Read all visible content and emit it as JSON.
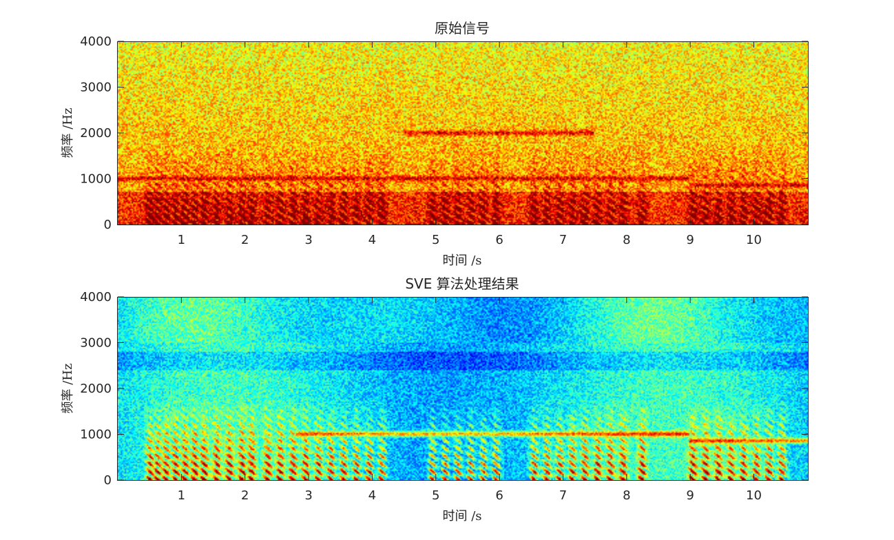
{
  "colors": {
    "text": "#262626",
    "background": "#ffffff",
    "colormap": "jet"
  },
  "chart_data": [
    {
      "type": "heatmap",
      "title": "原始信号",
      "xlabel": "时间 /s",
      "ylabel": "频率 /Hz",
      "xlim": [
        0,
        10.85
      ],
      "ylim": [
        0,
        4000
      ],
      "xticks": [
        1,
        2,
        3,
        4,
        5,
        6,
        7,
        8,
        9,
        10
      ],
      "xtick_labels": [
        "1",
        "2",
        "3",
        "4",
        "5",
        "6",
        "7",
        "8",
        "9",
        "10"
      ],
      "yticks": [
        0,
        1000,
        2000,
        3000,
        4000
      ],
      "ytick_labels": [
        "0",
        "1000",
        "2000",
        "3000",
        "4000"
      ],
      "colormap": "jet",
      "grid": false,
      "dominant_level": "high",
      "features": [
        {
          "kind": "harmonic-bursts",
          "freq_range": [
            0,
            1800
          ],
          "time_range": [
            0.4,
            10.8
          ]
        },
        {
          "kind": "tonal-line",
          "freq": 1000,
          "time_range": [
            0,
            9.0
          ]
        },
        {
          "kind": "tonal-line",
          "freq": 850,
          "time_range": [
            9.0,
            10.85
          ]
        },
        {
          "kind": "tonal-line",
          "freq": 2000,
          "time_range": [
            4.5,
            7.5
          ]
        }
      ]
    },
    {
      "type": "heatmap",
      "title": "SVE 算法处理结果",
      "xlabel": "时间 /s",
      "ylabel": "频率 /Hz",
      "xlim": [
        0,
        10.85
      ],
      "ylim": [
        0,
        4000
      ],
      "xticks": [
        1,
        2,
        3,
        4,
        5,
        6,
        7,
        8,
        9,
        10
      ],
      "xtick_labels": [
        "1",
        "2",
        "3",
        "4",
        "5",
        "6",
        "7",
        "8",
        "9",
        "10"
      ],
      "yticks": [
        0,
        1000,
        2000,
        3000,
        4000
      ],
      "ytick_labels": [
        "0",
        "1000",
        "2000",
        "3000",
        "4000"
      ],
      "colormap": "jet",
      "grid": false,
      "dominant_level": "low",
      "features": [
        {
          "kind": "harmonic-bursts",
          "freq_range": [
            0,
            1800
          ],
          "time_range": [
            0.4,
            10.8
          ]
        },
        {
          "kind": "tonal-line",
          "freq": 1000,
          "time_range": [
            2.8,
            9.0
          ]
        },
        {
          "kind": "tonal-line",
          "freq": 850,
          "time_range": [
            9.0,
            10.85
          ]
        }
      ]
    }
  ]
}
